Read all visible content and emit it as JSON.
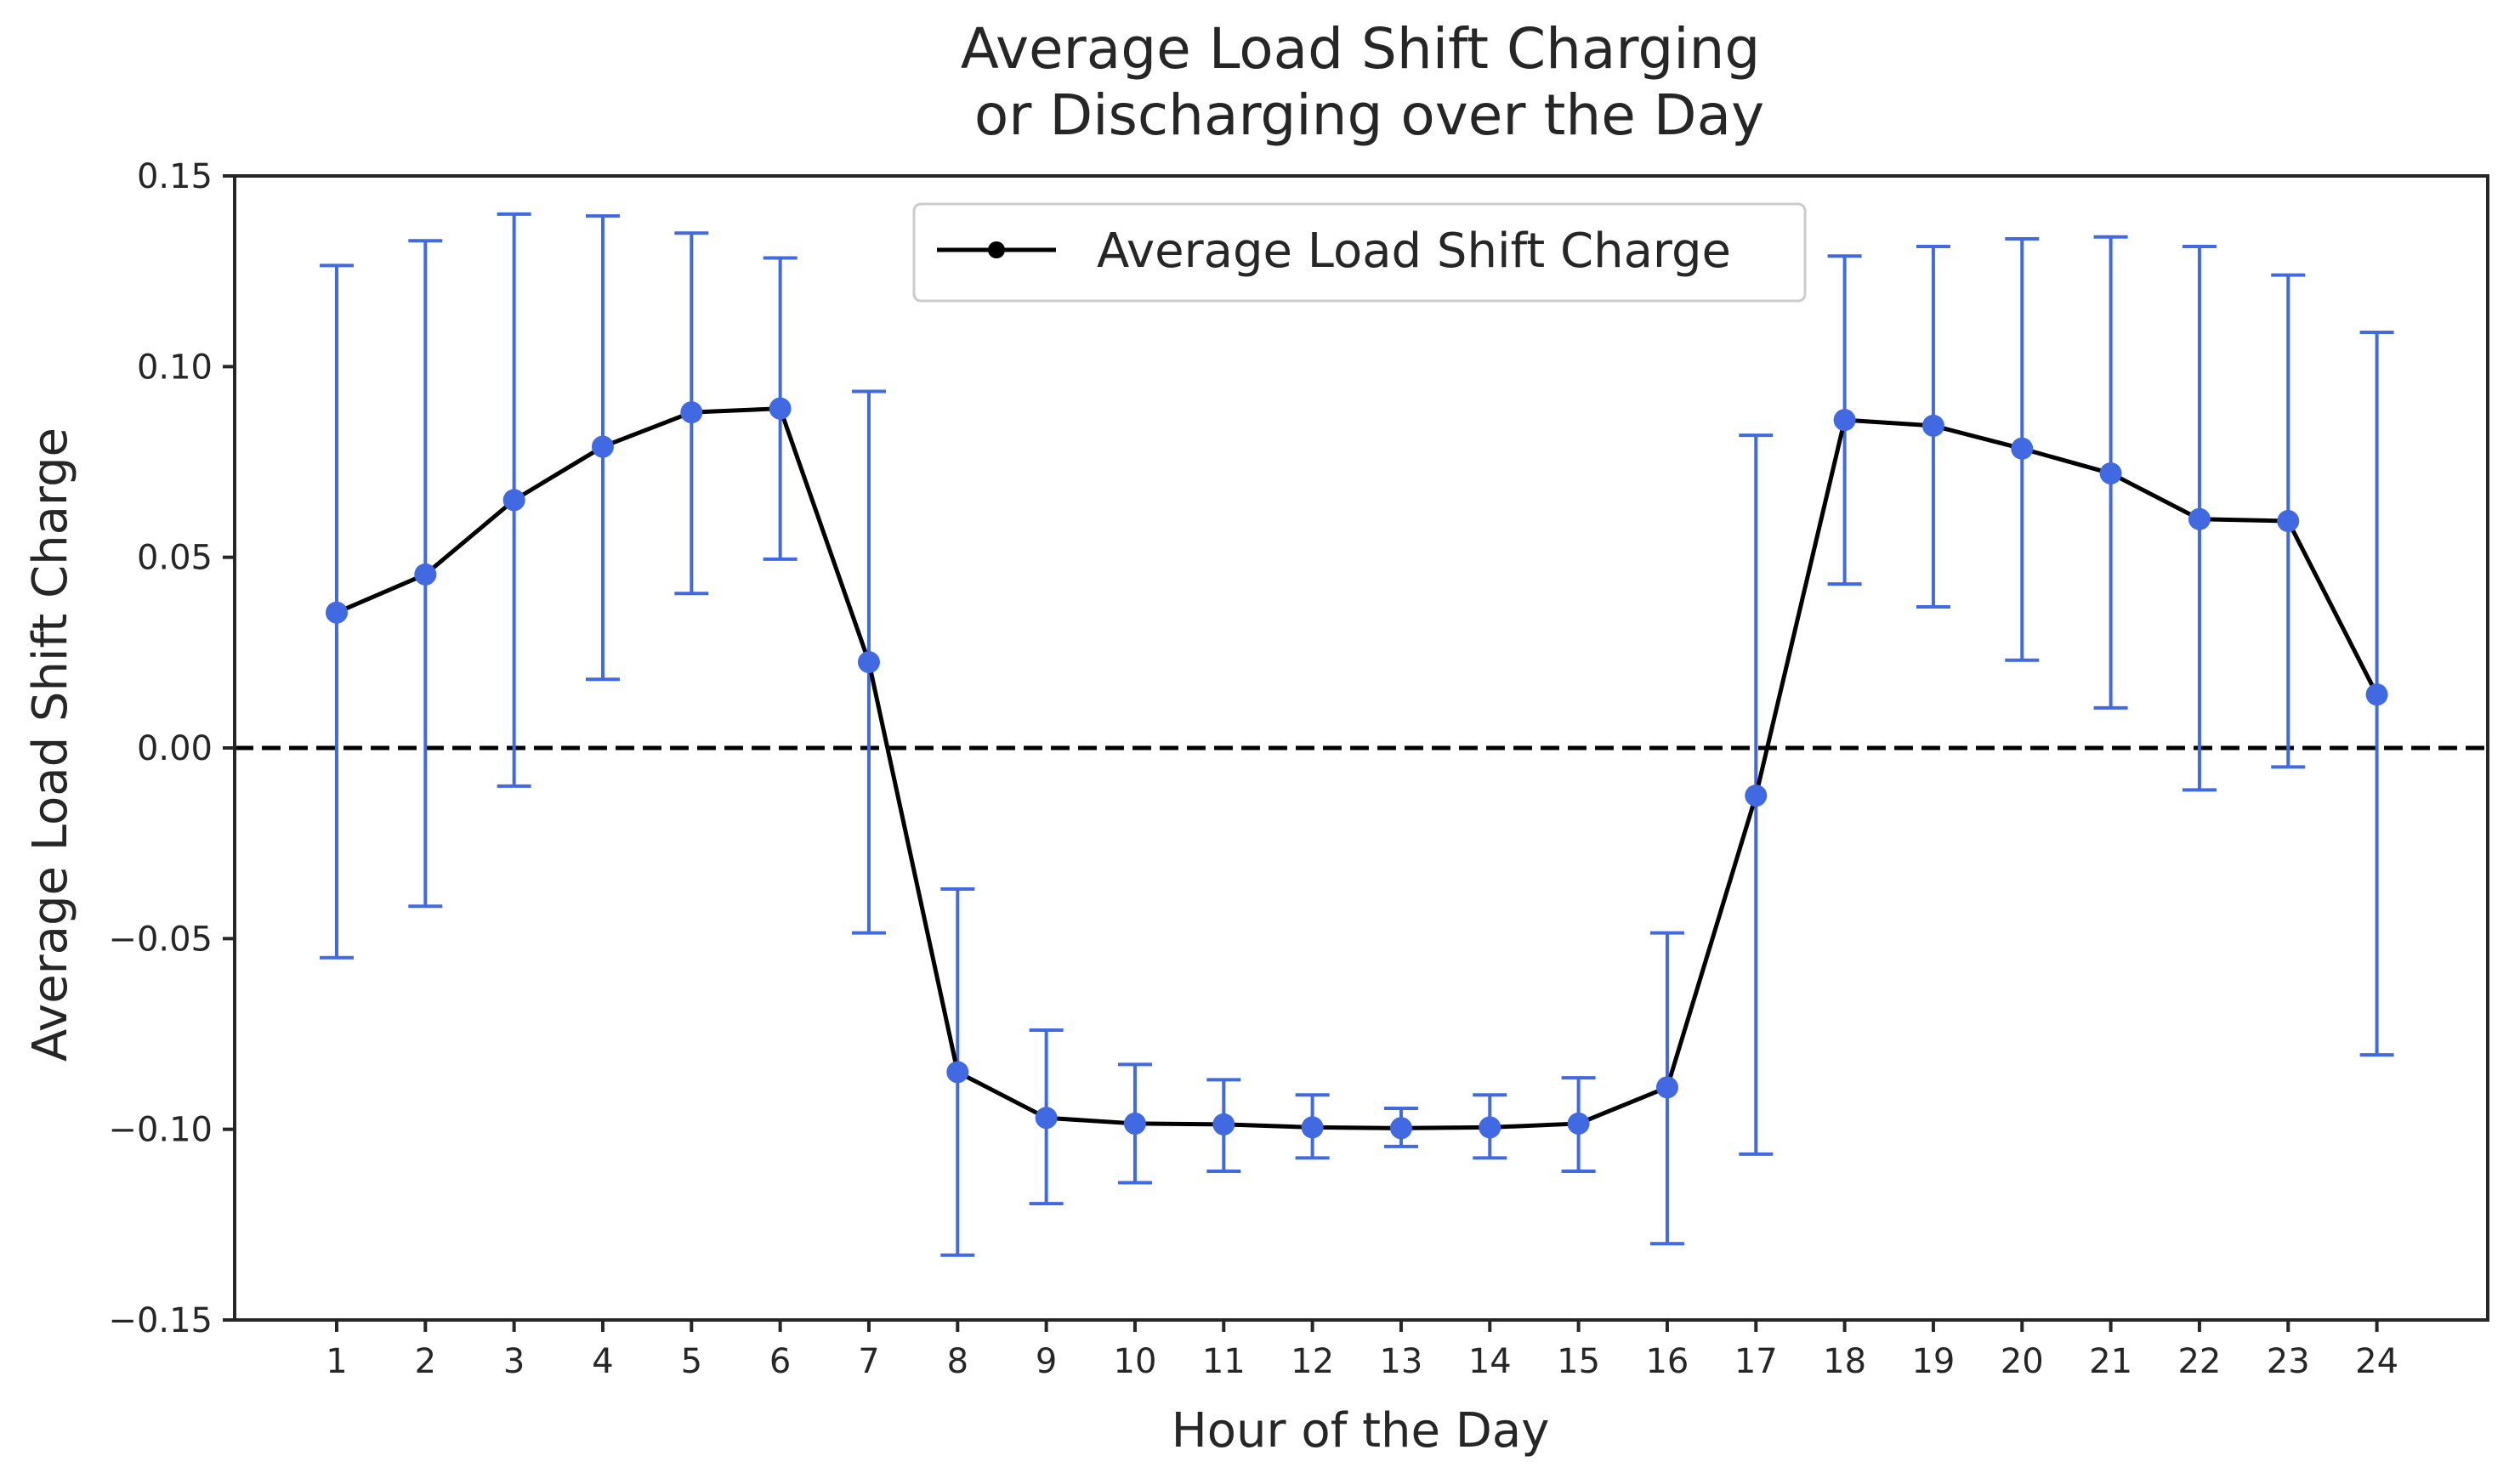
{
  "chart_data": {
    "type": "line",
    "title_lines": [
      "Average Load Shift Charging",
      " or Discharging over the Day"
    ],
    "xlabel": "Hour of the Day",
    "ylabel": "Average Load Shift Charge",
    "x": [
      1,
      2,
      3,
      4,
      5,
      6,
      7,
      8,
      9,
      10,
      11,
      12,
      13,
      14,
      15,
      16,
      17,
      18,
      19,
      20,
      21,
      22,
      23,
      24
    ],
    "x_tick_labels": [
      "1",
      "2",
      "3",
      "4",
      "5",
      "6",
      "7",
      "8",
      "9",
      "10",
      "11",
      "12",
      "13",
      "14",
      "15",
      "16",
      "17",
      "18",
      "19",
      "20",
      "21",
      "22",
      "23",
      "24"
    ],
    "y_ticks": [
      -0.15,
      -0.1,
      -0.05,
      0.0,
      0.05,
      0.1,
      0.15
    ],
    "y_tick_labels": [
      "−0.15",
      "−0.10",
      "−0.05",
      "0.00",
      "0.05",
      "0.10",
      "0.15"
    ],
    "ylim": [
      -0.15,
      0.15
    ],
    "xlim": [
      -0.15,
      25.25
    ],
    "grid": false,
    "legend_position": "top-center",
    "reference_line": {
      "y": 0.0,
      "style": "dashed",
      "color": "#000000"
    },
    "series": [
      {
        "name": "Average Load Shift Charge",
        "line_color": "#000000",
        "marker_color": "#4169e1",
        "errorbar_color": "#4169e1",
        "values": [
          0.0355,
          0.0455,
          0.065,
          0.079,
          0.088,
          0.089,
          0.0225,
          -0.085,
          -0.097,
          -0.0985,
          -0.0987,
          -0.0995,
          -0.0997,
          -0.0995,
          -0.0985,
          -0.089,
          -0.0125,
          0.086,
          0.0845,
          0.0785,
          0.072,
          0.06,
          0.0595,
          0.014
        ],
        "error_low": [
          -0.055,
          -0.0415,
          -0.01,
          0.018,
          0.0405,
          0.0495,
          -0.0485,
          -0.133,
          -0.1195,
          -0.114,
          -0.111,
          -0.1075,
          -0.1045,
          -0.1075,
          -0.111,
          -0.13,
          -0.1065,
          0.043,
          0.037,
          0.023,
          0.0105,
          -0.011,
          -0.005,
          -0.0805
        ],
        "error_high": [
          0.1265,
          0.133,
          0.14,
          0.1395,
          0.135,
          0.1285,
          0.0935,
          -0.037,
          -0.074,
          -0.083,
          -0.087,
          -0.091,
          -0.0945,
          -0.091,
          -0.0865,
          -0.0485,
          0.082,
          0.129,
          0.1315,
          0.1335,
          0.134,
          0.1315,
          0.124,
          0.109
        ]
      }
    ]
  }
}
